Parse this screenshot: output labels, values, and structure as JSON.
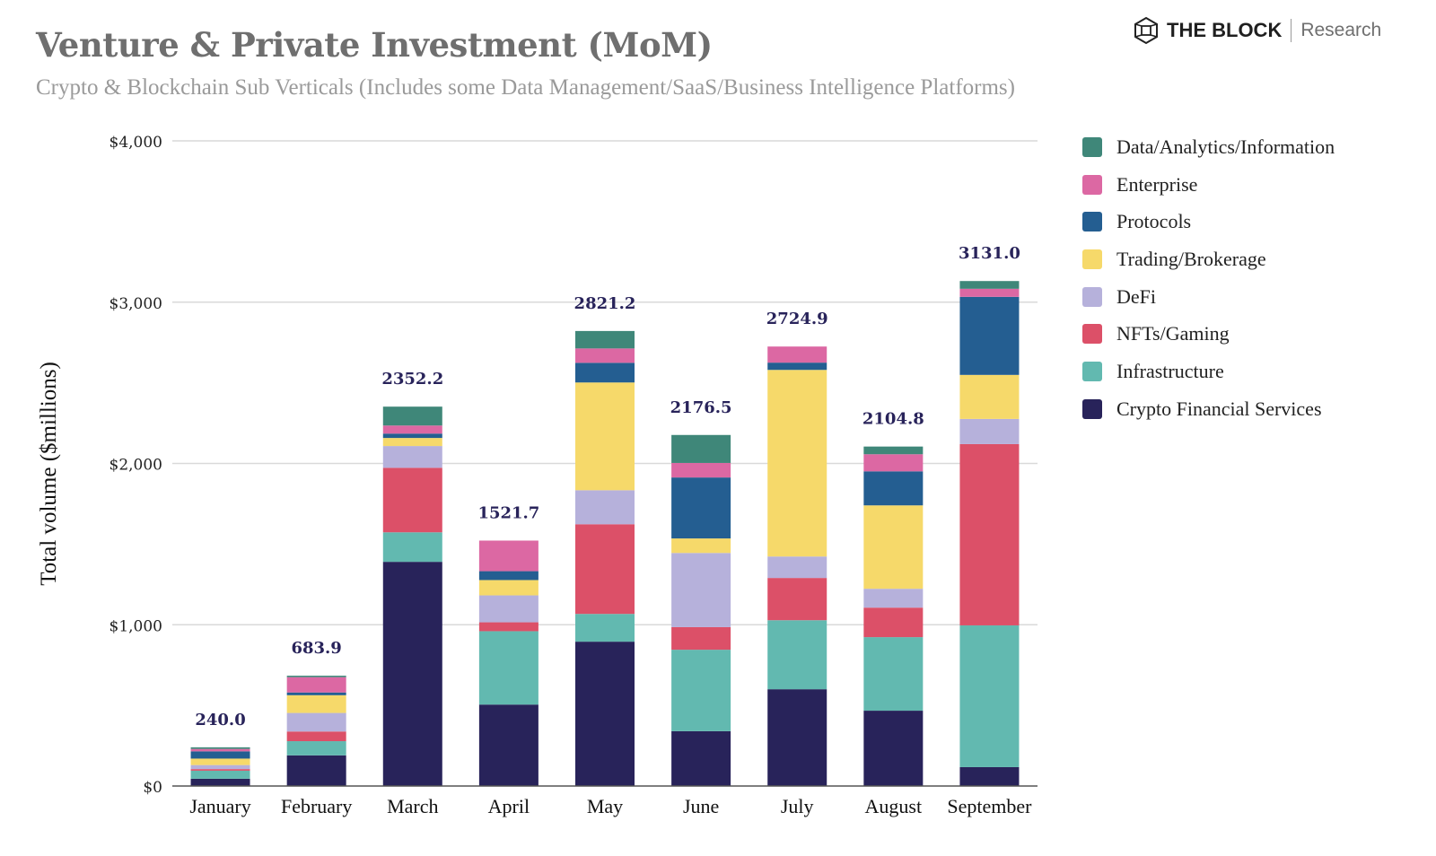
{
  "header": {
    "title": "Venture & Private Investment (MoM)",
    "subtitle": "Crypto & Blockchain Sub Verticals (Includes some Data Management/SaaS/Business Intelligence Platforms)"
  },
  "brand": {
    "logo_icon": "hexagon-cube-icon",
    "name": "THE BLOCK",
    "suffix": "Research"
  },
  "chart_data": {
    "type": "bar",
    "stacked": true,
    "title": "Venture & Private Investment (MoM)",
    "subtitle": "Crypto & Blockchain Sub Verticals (Includes some Data Management/SaaS/Business Intelligence Platforms)",
    "xlabel": "",
    "ylabel": "Total volume ($millions)",
    "ylim": [
      0,
      4000
    ],
    "yticks": [
      0,
      1000,
      2000,
      3000,
      4000
    ],
    "ytick_labels": [
      "$0",
      "$1,000",
      "$2,000",
      "$3,000",
      "$4,000"
    ],
    "grid": true,
    "legend_position": "right",
    "categories": [
      "January",
      "February",
      "March",
      "April",
      "May",
      "June",
      "July",
      "August",
      "September"
    ],
    "totals": [
      240.0,
      683.9,
      2352.2,
      1521.7,
      2821.2,
      2176.5,
      2724.9,
      2104.8,
      3131.0
    ],
    "total_labels": [
      "240.0",
      "683.9",
      "2352.2",
      "1521.7",
      "2821.2",
      "2176.5",
      "2724.9",
      "2104.8",
      "3131.0"
    ],
    "series": [
      {
        "name": "Crypto Financial Services",
        "color": "#28235a",
        "values": [
          45,
          190,
          1390,
          505,
          895,
          340,
          600,
          467,
          117
        ]
      },
      {
        "name": "Infrastructure",
        "color": "#62b9b0",
        "values": [
          50,
          88,
          183,
          455,
          172,
          505,
          428,
          456,
          879
        ]
      },
      {
        "name": "NFTs/Gaming",
        "color": "#dc5068",
        "values": [
          10,
          60,
          400,
          55,
          556,
          140,
          262,
          183,
          1124
        ]
      },
      {
        "name": "DeFi",
        "color": "#b6b1db",
        "values": [
          25,
          115,
          135,
          167,
          211,
          460,
          133,
          117,
          156
        ]
      },
      {
        "name": "Trading/Brokerage",
        "color": "#f6d96a",
        "values": [
          40,
          110,
          50,
          95,
          668,
          90,
          1157,
          517,
          273
        ]
      },
      {
        "name": "Protocols",
        "color": "#245e91",
        "values": [
          45,
          17,
          27,
          55,
          122,
          378,
          45,
          211,
          484
        ]
      },
      {
        "name": "Enterprise",
        "color": "#dc68a3",
        "values": [
          15,
          95,
          50,
          189.7,
          89,
          90,
          99.9,
          106,
          50
        ]
      },
      {
        "name": "Data/Analytics/Information",
        "color": "#3f8779",
        "values": [
          10,
          8.9,
          117.2,
          0,
          108.2,
          173.5,
          0,
          47.8,
          48
        ]
      }
    ],
    "legend_order": [
      "Data/Analytics/Information",
      "Enterprise",
      "Protocols",
      "Trading/Brokerage",
      "DeFi",
      "NFTs/Gaming",
      "Infrastructure",
      "Crypto Financial Services"
    ],
    "label_color": "#28235a"
  }
}
